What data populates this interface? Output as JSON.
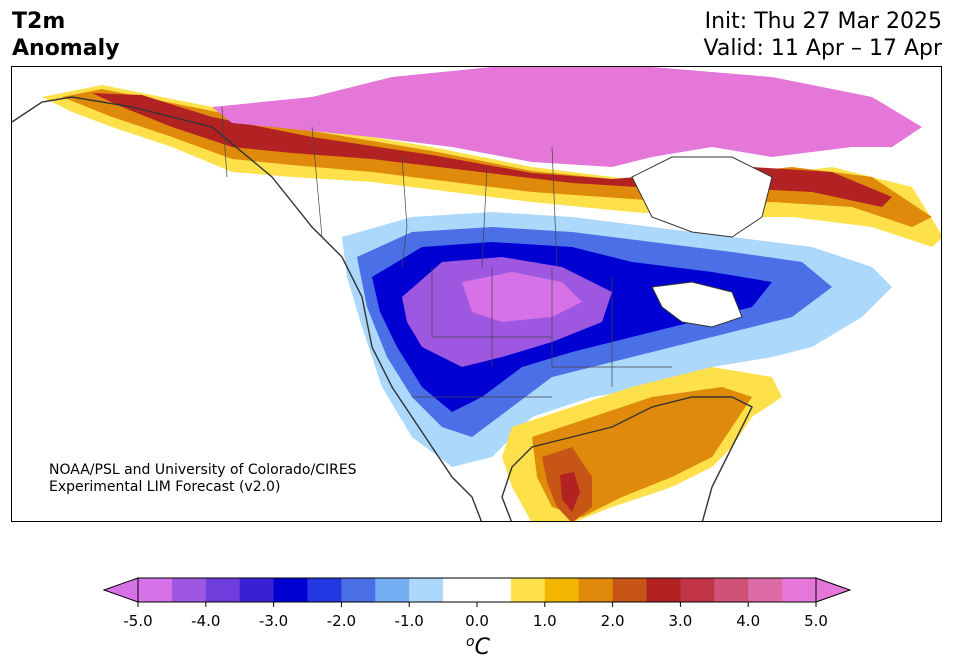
{
  "header": {
    "title_line1": "T2m",
    "title_line2": "Anomaly",
    "init": "Init: Thu 27 Mar 2025",
    "valid": "Valid: 11 Apr – 17 Apr"
  },
  "credit": {
    "line1": "NOAA/PSL and University of Colorado/CIRES",
    "line2": "Experimental LIM Forecast (v2.0)"
  },
  "colorbar": {
    "unit_base": "C",
    "unit_sup": "o",
    "ticks": [
      "-5.0",
      "-4.0",
      "-3.0",
      "-2.0",
      "-1.0",
      "0.0",
      "1.0",
      "2.0",
      "3.0",
      "4.0",
      "5.0"
    ],
    "colors": [
      "#d671e8",
      "#9d57e0",
      "#6f3ddb",
      "#3a20d4",
      "#0000d2",
      "#2337e2",
      "#4a6fe6",
      "#74aef2",
      "#abd8fb",
      "#ffffff",
      "#ffffff",
      "#fee14a",
      "#f2b600",
      "#df8a0a",
      "#c75516",
      "#b32222",
      "#c23447",
      "#d15277",
      "#dd6ca6",
      "#e577d9"
    ],
    "extend_min_color": "#d671e8",
    "extend_max_color": "#e577d9"
  }
}
